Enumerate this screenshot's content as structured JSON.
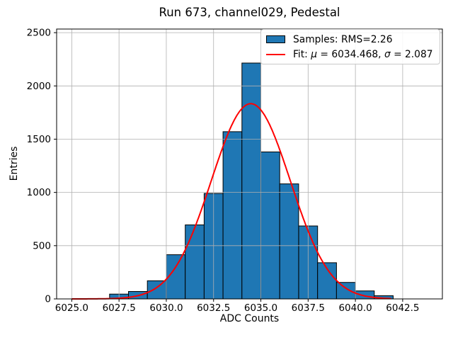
{
  "chart_data": {
    "type": "histogram",
    "title": "Run 673, channel029, Pedestal",
    "xlabel": "ADC Counts",
    "ylabel": "Entries",
    "xlim": [
      6024.2,
      6044.6
    ],
    "ylim": [
      0,
      2534
    ],
    "x_ticks": [
      6025.0,
      6027.5,
      6030.0,
      6032.5,
      6035.0,
      6037.5,
      6040.0,
      6042.5
    ],
    "x_tick_labels": [
      "6025.0",
      "6027.5",
      "6030.0",
      "6032.5",
      "6035.0",
      "6037.5",
      "6040.0",
      "6042.5"
    ],
    "y_ticks": [
      0,
      500,
      1000,
      1500,
      2000,
      2500
    ],
    "y_tick_labels": [
      "0",
      "500",
      "1000",
      "1500",
      "2000",
      "2500"
    ],
    "grid": true,
    "legend_position": "upper right",
    "bar_color": "#1f77b4",
    "bar_edge_color": "#000000",
    "grid_color": "#b0b0b0",
    "fit_color": "#ff0000",
    "bins": {
      "start": 6027,
      "width": 1,
      "counts": [
        45,
        70,
        170,
        415,
        695,
        990,
        1570,
        2215,
        1380,
        1080,
        685,
        340,
        155,
        75,
        30
      ]
    },
    "fit_curve": {
      "mu": 6034.468,
      "sigma": 2.087,
      "peak": 1833,
      "x_range": [
        6025.0,
        6041.9
      ]
    }
  },
  "legend": {
    "samples_label": "Samples: RMS=2.26",
    "fit_label_full": "Fit: μ = 6034.468, σ = 2.087",
    "fit_prefix": "Fit: ",
    "fit_mu_symbol": "μ",
    "fit_mu_rest": " = 6034.468, ",
    "fit_sigma_symbol": "σ",
    "fit_sigma_rest": " = 2.087"
  }
}
